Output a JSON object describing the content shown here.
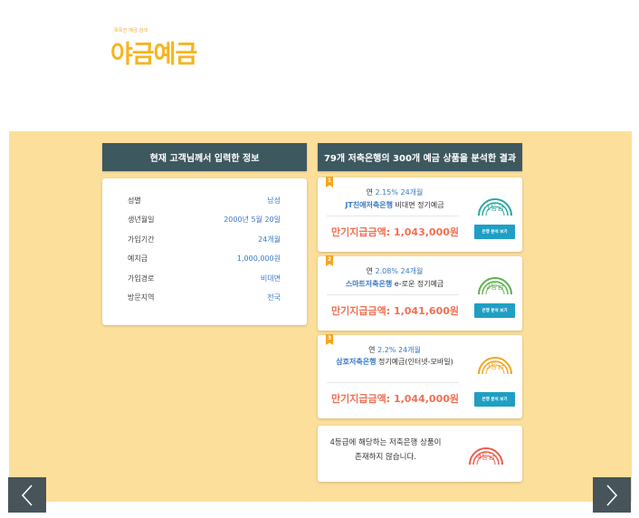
{
  "logo": {
    "tagline": "똑똑한 예금 검색",
    "name": "야금예금"
  },
  "left_panel": {
    "title": "현재 고객님께서 입력한 정보",
    "rows": [
      {
        "label": "성별",
        "value": "남성"
      },
      {
        "label": "생년월일",
        "value": "2000년 5월 20일"
      },
      {
        "label": "가입기간",
        "value": "24개월"
      },
      {
        "label": "예치금",
        "value": "1,000,000원"
      },
      {
        "label": "가입경로",
        "value": "비대면"
      },
      {
        "label": "방문지역",
        "value": "전국"
      }
    ]
  },
  "right_panel": {
    "title": "79개 저축은행의 300개 예금 상품을 분석한 결과",
    "results": [
      {
        "rank": "1",
        "rate_prefix": "연",
        "rate": "2.15%",
        "term": "24개월",
        "bank": "JT친애저축은행",
        "product": "비대면 정기예금",
        "maturity": "만기지급금액: 1,043,000원",
        "grade": "1등급",
        "grade_color": "#2aa79b",
        "button": "은행 분석 보기"
      },
      {
        "rank": "2",
        "rate_prefix": "연",
        "rate": "2.08%",
        "term": "24개월",
        "bank": "스마트저축은행",
        "product": "e-로운 정기예금",
        "maturity": "만기지급금액: 1,041,600원",
        "grade": "2등급",
        "grade_color": "#5fb04e",
        "button": "은행 분석 보기"
      },
      {
        "rank": "3",
        "rate_prefix": "연",
        "rate": "2.2%",
        "term": "24개월",
        "bank": "삼호저축은행",
        "product": "정기예금(인터넷-모바일)",
        "maturity": "만기지급금액: 1,044,000원",
        "grade": "3등급",
        "grade_color": "#f4a51c",
        "button": "은행 분석 보기"
      }
    ],
    "no_result": {
      "line1": "4등급에 해당하는 저축은행 상품이",
      "line2": "존재하지 않습니다.",
      "grade": "4등급",
      "grade_color": "#ee5b4b"
    }
  },
  "nav": {
    "prev_icon": "chevron-left-icon",
    "next_icon": "chevron-right-icon"
  }
}
